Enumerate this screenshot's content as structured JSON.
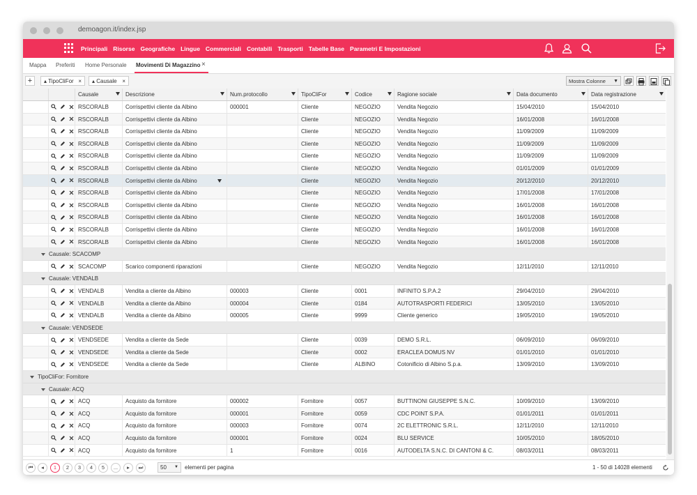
{
  "browser": {
    "url": "demoagon.it/index.jsp"
  },
  "navbar": {
    "menu": [
      "Principali",
      "Risorse",
      "Geografiche",
      "Lingue",
      "Commerciali",
      "Contabili",
      "Trasporti",
      "Tabelle Base",
      "Parametri E Impostazioni"
    ],
    "icons": [
      "apps-grid-icon",
      "bell-icon",
      "user-icon",
      "search-icon",
      "logout-icon"
    ],
    "accent": "#f0325a"
  },
  "tabs": {
    "items": [
      "Mappa",
      "Preferiti",
      "Home Personale",
      "Movimenti Di Magazzino"
    ],
    "active": "Movimenti Di Magazzino",
    "close": "×"
  },
  "groupbar": {
    "add": "+",
    "chips": [
      "TipoCliFor",
      "Causale"
    ],
    "chip_close": "×",
    "column_select": "Mostra Colonne"
  },
  "grid": {
    "columns": [
      "Causale",
      "Descrizione",
      "Num.protocollo",
      "TipoCliFor",
      "Codice",
      "Ragione sociale",
      "Data documento",
      "Data registrazione"
    ],
    "rows": [
      {
        "type": "data",
        "cells": [
          "RSCORALB",
          "Corrispettivi cliente da Albino",
          "000001",
          "Cliente",
          "NEGOZIO",
          "Vendita Negozio",
          "15/04/2010",
          "15/04/2010"
        ]
      },
      {
        "type": "data",
        "cells": [
          "RSCORALB",
          "Corrispettivi cliente da Albino",
          "",
          "Cliente",
          "NEGOZIO",
          "Vendita Negozio",
          "16/01/2008",
          "16/01/2008"
        ]
      },
      {
        "type": "data",
        "cells": [
          "RSCORALB",
          "Corrispettivi cliente da Albino",
          "",
          "Cliente",
          "NEGOZIO",
          "Vendita Negozio",
          "11/09/2009",
          "11/09/2009"
        ]
      },
      {
        "type": "data",
        "cells": [
          "RSCORALB",
          "Corrispettivi cliente da Albino",
          "",
          "Cliente",
          "NEGOZIO",
          "Vendita Negozio",
          "11/09/2009",
          "11/09/2009"
        ]
      },
      {
        "type": "data",
        "cells": [
          "RSCORALB",
          "Corrispettivi cliente da Albino",
          "",
          "Cliente",
          "NEGOZIO",
          "Vendita Negozio",
          "11/09/2009",
          "11/09/2009"
        ]
      },
      {
        "type": "data",
        "cells": [
          "RSCORALB",
          "Corrispettivi cliente da Albino",
          "",
          "Cliente",
          "NEGOZIO",
          "Vendita Negozio",
          "01/01/2009",
          "01/01/2009"
        ]
      },
      {
        "type": "data",
        "highlight": true,
        "cells": [
          "RSCORALB",
          "Corrispettivi cliente da Albino",
          "",
          "Cliente",
          "NEGOZIO",
          "Vendita Negozio",
          "20/12/2010",
          "20/12/2010"
        ]
      },
      {
        "type": "data",
        "cells": [
          "RSCORALB",
          "Corrispettivi cliente da Albino",
          "",
          "Cliente",
          "NEGOZIO",
          "Vendita Negozio",
          "17/01/2008",
          "17/01/2008"
        ]
      },
      {
        "type": "data",
        "cells": [
          "RSCORALB",
          "Corrispettivi cliente da Albino",
          "",
          "Cliente",
          "NEGOZIO",
          "Vendita Negozio",
          "16/01/2008",
          "16/01/2008"
        ]
      },
      {
        "type": "data",
        "cells": [
          "RSCORALB",
          "Corrispettivi cliente da Albino",
          "",
          "Cliente",
          "NEGOZIO",
          "Vendita Negozio",
          "16/01/2008",
          "16/01/2008"
        ]
      },
      {
        "type": "data",
        "cells": [
          "RSCORALB",
          "Corrispettivi cliente da Albino",
          "",
          "Cliente",
          "NEGOZIO",
          "Vendita Negozio",
          "16/01/2008",
          "16/01/2008"
        ]
      },
      {
        "type": "data",
        "cells": [
          "RSCORALB",
          "Corrispettivi cliente da Albino",
          "",
          "Cliente",
          "NEGOZIO",
          "Vendita Negozio",
          "16/01/2008",
          "16/01/2008"
        ]
      },
      {
        "type": "group",
        "level": 2,
        "label": "Causale: SCACOMP"
      },
      {
        "type": "data",
        "cells": [
          "SCACOMP",
          "Scarico componenti riparazioni",
          "",
          "Cliente",
          "NEGOZIO",
          "Vendita Negozio",
          "12/11/2010",
          "12/11/2010"
        ]
      },
      {
        "type": "group",
        "level": 2,
        "label": "Causale: VENDALB"
      },
      {
        "type": "data",
        "cells": [
          "VENDALB",
          "Vendita a cliente da Albino",
          "000003",
          "Cliente",
          "0001",
          "INFINITO S.P.A.2",
          "29/04/2010",
          "29/04/2010"
        ]
      },
      {
        "type": "data",
        "cells": [
          "VENDALB",
          "Vendita a cliente da Albino",
          "000004",
          "Cliente",
          "0184",
          "AUTOTRASPORTI FEDERICI",
          "13/05/2010",
          "13/05/2010"
        ]
      },
      {
        "type": "data",
        "cells": [
          "VENDALB",
          "Vendita a cliente da Albino",
          "000005",
          "Cliente",
          "9999",
          "Cliente generico",
          "19/05/2010",
          "19/05/2010"
        ]
      },
      {
        "type": "group",
        "level": 2,
        "label": "Causale: VENDSEDE"
      },
      {
        "type": "data",
        "cells": [
          "VENDSEDE",
          "Vendita a cliente da Sede",
          "",
          "Cliente",
          "0039",
          "DEMO S.R.L.",
          "06/09/2010",
          "06/09/2010"
        ]
      },
      {
        "type": "data",
        "cells": [
          "VENDSEDE",
          "Vendita a cliente da Sede",
          "",
          "Cliente",
          "0002",
          "ERACLEA DOMUS NV",
          "01/01/2010",
          "01/01/2010"
        ]
      },
      {
        "type": "data",
        "cells": [
          "VENDSEDE",
          "Vendita a cliente da Sede",
          "",
          "Cliente",
          "ALBINO",
          "Cotonificio di Albino S.p.a.",
          "13/09/2010",
          "13/09/2010"
        ]
      },
      {
        "type": "group",
        "level": 1,
        "label": "TipoCliFor: Fornitore"
      },
      {
        "type": "group",
        "level": 2,
        "label": "Causale: ACQ"
      },
      {
        "type": "data",
        "cells": [
          "ACQ",
          "Acquisto da fornitore",
          "000002",
          "Fornitore",
          "0057",
          "BUTTINONI GIUSEPPE S.N.C.",
          "10/09/2010",
          "13/09/2010"
        ]
      },
      {
        "type": "data",
        "cells": [
          "ACQ",
          "Acquisto da fornitore",
          "000001",
          "Fornitore",
          "0059",
          "CDC POINT S.P.A.",
          "01/01/2011",
          "01/01/2011"
        ]
      },
      {
        "type": "data",
        "cells": [
          "ACQ",
          "Acquisto da fornitore",
          "000003",
          "Fornitore",
          "0074",
          "2C ELETTRONIC S.R.L.",
          "12/11/2010",
          "12/11/2010"
        ]
      },
      {
        "type": "data",
        "cells": [
          "ACQ",
          "Acquisto da fornitore",
          "000001",
          "Fornitore",
          "0024",
          "BLU SERVICE",
          "10/05/2010",
          "18/05/2010"
        ]
      },
      {
        "type": "data",
        "cells": [
          "ACQ",
          "Acquisto da fornitore",
          "1",
          "Fornitore",
          "0016",
          "AUTODELTA S.N.C. DI CANTONI & C.",
          "08/03/2011",
          "08/03/2011"
        ]
      }
    ]
  },
  "pager": {
    "pages": [
      "1",
      "2",
      "3",
      "4",
      "5",
      "..."
    ],
    "current": "1",
    "first": "⏮",
    "prev": "◂",
    "next": "▸",
    "last": "⏭",
    "page_size": "50",
    "page_size_label": "elementi per pagina",
    "summary": "1 - 50 di 14028 elementi"
  }
}
